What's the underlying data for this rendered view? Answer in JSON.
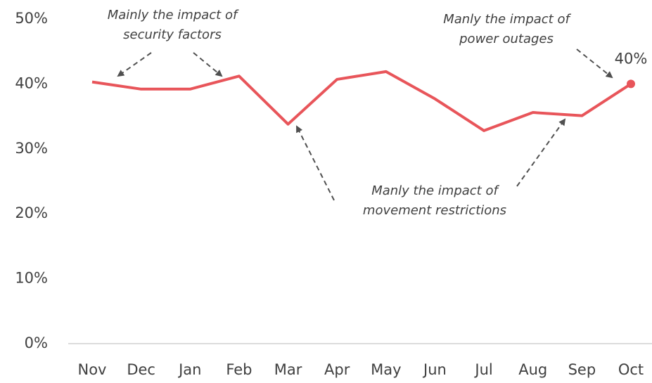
{
  "chart_data": {
    "type": "line",
    "categories": [
      "Nov",
      "Dec",
      "Jan",
      "Feb",
      "Mar",
      "Apr",
      "May",
      "Jun",
      "Jul",
      "Aug",
      "Sep",
      "Oct"
    ],
    "series": [
      {
        "color": "#e8555a",
        "values": [
          40.3,
          39.2,
          39.2,
          41.2,
          33.8,
          40.7,
          41.9,
          37.7,
          32.8,
          35.6,
          35.1,
          40
        ],
        "value_labels": [
          null,
          null,
          null,
          null,
          null,
          null,
          null,
          null,
          null,
          null,
          null,
          "40%"
        ]
      }
    ],
    "ylim": [
      0,
      50
    ],
    "yticks": [
      {
        "value": 0,
        "label": "0%"
      },
      {
        "value": 10,
        "label": "10%"
      },
      {
        "value": 20,
        "label": "20%"
      },
      {
        "value": 30,
        "label": "30%"
      },
      {
        "value": 40,
        "label": "40%"
      },
      {
        "value": 50,
        "label": "50%"
      }
    ],
    "grid": false,
    "annotations": [
      {
        "lines": [
          "Mainly the impact of",
          "security factors"
        ]
      },
      {
        "lines": [
          "Manly the impact of",
          "movement restrictions"
        ]
      },
      {
        "lines": [
          "Manly the impact of",
          "power outages"
        ]
      }
    ]
  }
}
